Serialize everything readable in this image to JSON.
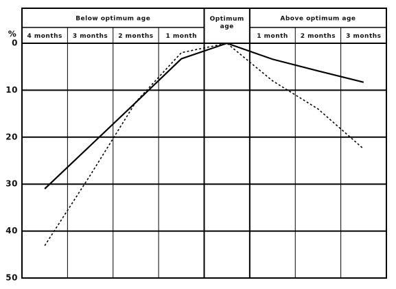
{
  "chart_data": {
    "type": "line",
    "group_labels": [
      "Below optimum age",
      "Above optimum age"
    ],
    "categories": [
      "4 months",
      "3 months",
      "2 months",
      "1 month",
      "Optimum age",
      "1 month",
      "2 months",
      "3 months"
    ],
    "y_label": "%",
    "ylim": [
      0,
      50
    ],
    "yticks": [
      0,
      10,
      20,
      30,
      40,
      50
    ],
    "y_inverted": true,
    "grid": true,
    "series": [
      {
        "color": "#000000",
        "dashed": false,
        "values": [
          31,
          21.8,
          12.6,
          3.3,
          0,
          3.4,
          5.9,
          8.3
        ]
      },
      {
        "color": "#000000",
        "dashed": true,
        "values": [
          43.1,
          28.1,
          12.5,
          2,
          0,
          8,
          14,
          22.5
        ]
      }
    ]
  }
}
